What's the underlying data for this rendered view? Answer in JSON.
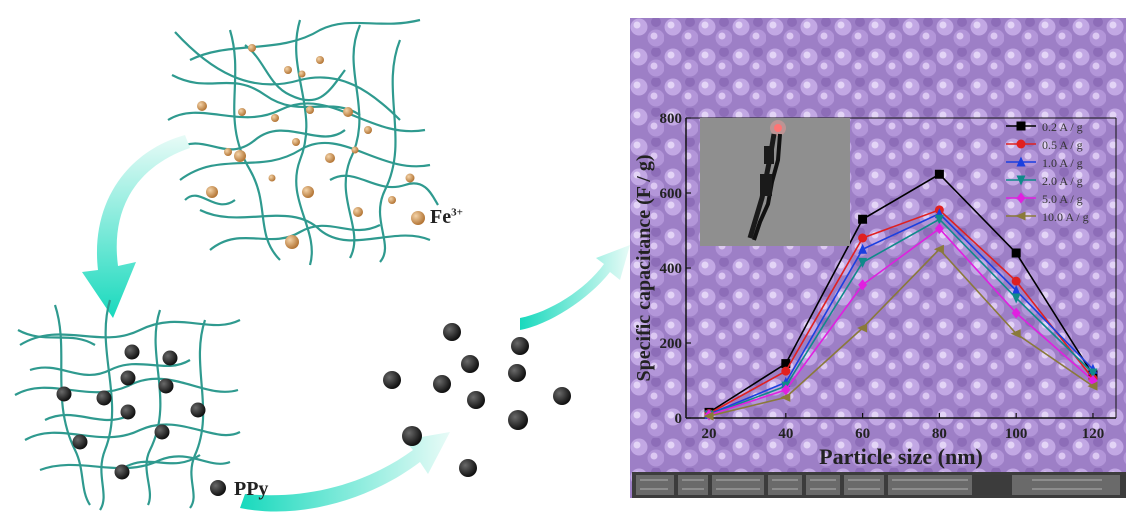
{
  "labels": {
    "fe": "Fe",
    "fe_charge": "3+",
    "ppy": "PPy"
  },
  "colors": {
    "fiber": "#2f9a8f",
    "fe_particle": "#d4a06a",
    "ppy_particle": "#262626",
    "arrow": "#3ee0c8",
    "sem_background": "#a184c9"
  },
  "chart_data": {
    "type": "line",
    "xlabel": "Particle size (nm)",
    "ylabel": "Specific capacitance (F / g)",
    "x": [
      "20",
      "40",
      "60",
      "80",
      "100",
      "120"
    ],
    "ylim": [
      0,
      800
    ],
    "yticks": [
      "0",
      "200",
      "400",
      "600",
      "800"
    ],
    "legend_position": "top-right",
    "series": [
      {
        "name": "0.2 A / g",
        "color": "#000000",
        "marker": "square",
        "values": [
          15,
          145,
          530,
          650,
          440,
          115
        ]
      },
      {
        "name": "0.5 A / g",
        "color": "#e02020",
        "marker": "circle",
        "values": [
          12,
          125,
          480,
          555,
          365,
          105
        ]
      },
      {
        "name": "1.0 A / g",
        "color": "#1a3fe0",
        "marker": "triangle-up",
        "values": [
          10,
          95,
          450,
          545,
          340,
          130
        ]
      },
      {
        "name": "2.0 A / g",
        "color": "#0f8a8a",
        "marker": "triangle-down",
        "values": [
          8,
          85,
          415,
          530,
          320,
          120
        ]
      },
      {
        "name": "5.0 A / g",
        "color": "#e020e0",
        "marker": "diamond",
        "values": [
          8,
          75,
          355,
          505,
          280,
          100
        ]
      },
      {
        "name": "10.0 A / g",
        "color": "#8a7a3a",
        "marker": "triangle-left",
        "values": [
          5,
          55,
          240,
          450,
          225,
          85
        ]
      }
    ]
  }
}
